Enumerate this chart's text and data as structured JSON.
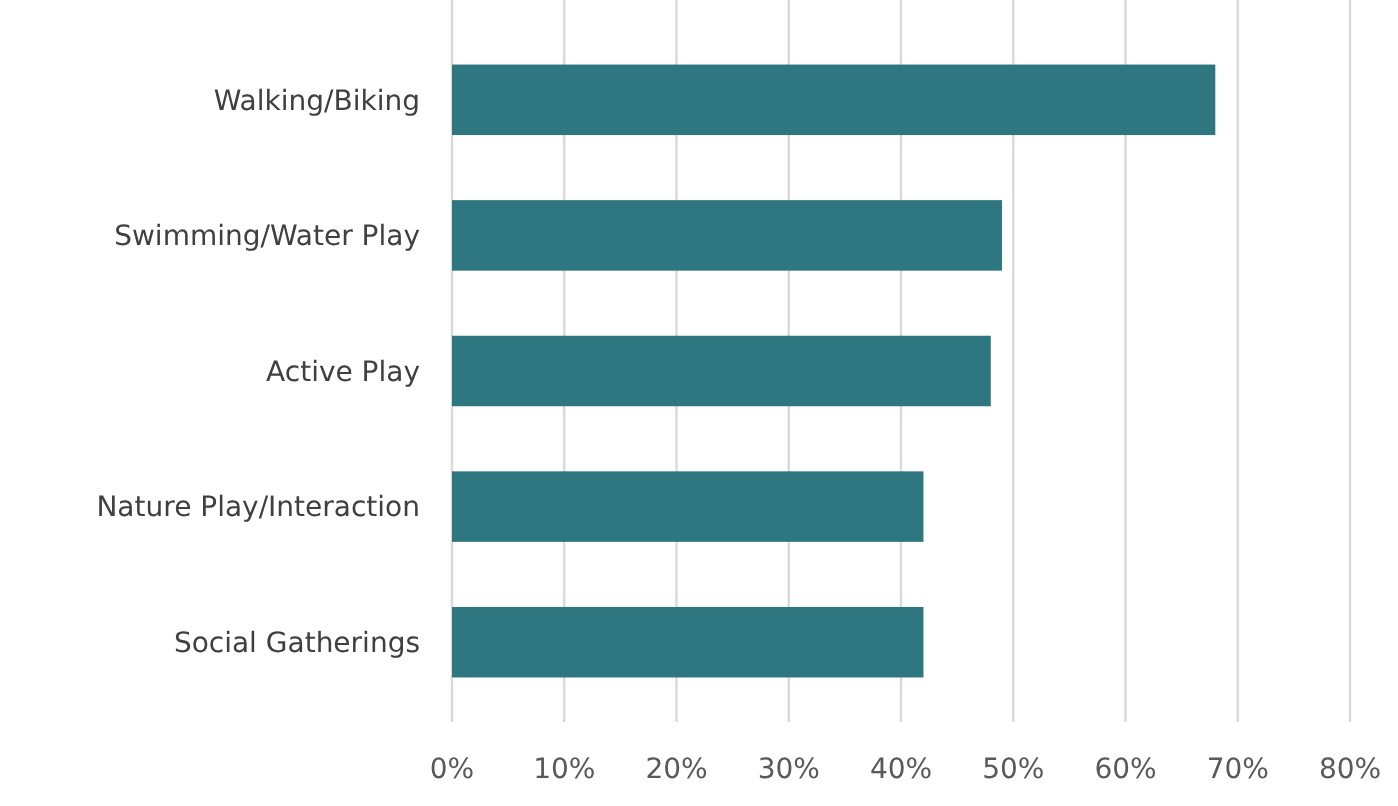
{
  "chart_data": {
    "type": "bar",
    "orientation": "horizontal",
    "categories": [
      "Walking/Biking",
      "Swimming/Water Play",
      "Active Play",
      "Nature Play/Interaction",
      "Social Gatherings"
    ],
    "values": [
      68,
      49,
      48,
      42,
      42
    ],
    "color": "#2e7780",
    "xlim": [
      0,
      80
    ],
    "xticks": [
      {
        "value": 0,
        "label": "0%"
      },
      {
        "value": 10,
        "label": "10%"
      },
      {
        "value": 20,
        "label": "20%"
      },
      {
        "value": 30,
        "label": "30%"
      },
      {
        "value": 40,
        "label": "40%"
      },
      {
        "value": 50,
        "label": "50%"
      },
      {
        "value": 60,
        "label": "60%"
      },
      {
        "value": 70,
        "label": "70%"
      },
      {
        "value": 80,
        "label": "80%"
      }
    ],
    "grid": "x"
  }
}
